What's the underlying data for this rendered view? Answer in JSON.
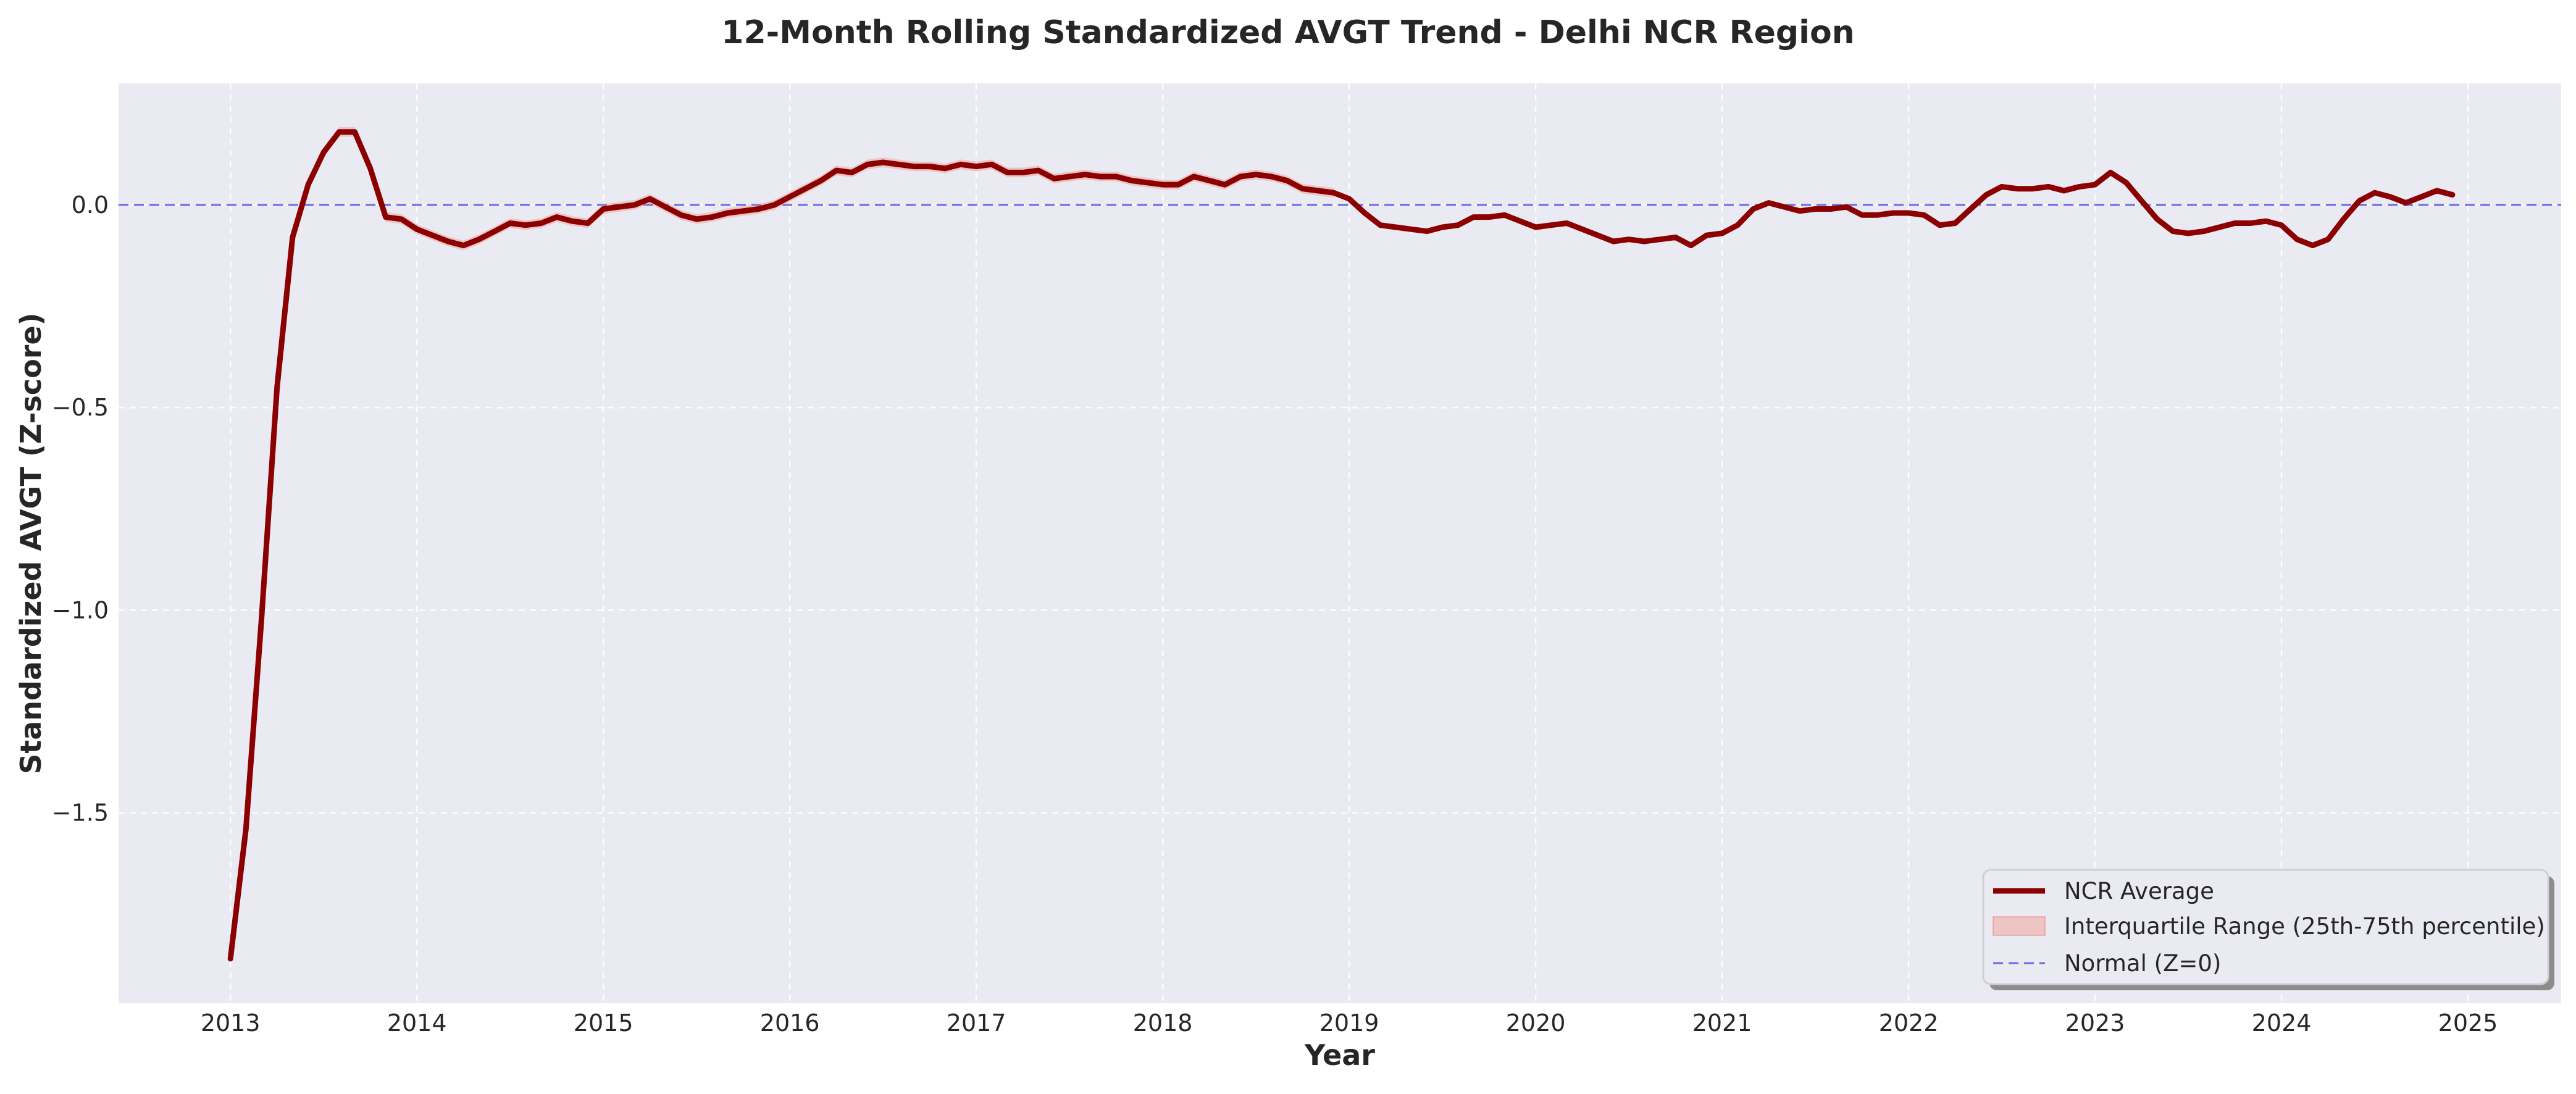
{
  "chart_data": {
    "type": "line",
    "title": "12-Month Rolling Standardized AVGT Trend - Delhi NCR Region",
    "xlabel": "Year",
    "ylabel": "Standardized AVGT (Z-score)",
    "xlim": [
      2012.4,
      2025.5
    ],
    "ylim": [
      -1.97,
      0.3
    ],
    "x_ticks": [
      2013,
      2014,
      2015,
      2016,
      2017,
      2018,
      2019,
      2020,
      2021,
      2022,
      2023,
      2024,
      2025
    ],
    "x_tick_labels": [
      "2013",
      "2014",
      "2015",
      "2016",
      "2017",
      "2018",
      "2019",
      "2020",
      "2021",
      "2022",
      "2023",
      "2024",
      "2025"
    ],
    "y_ticks": [
      0.0,
      -0.5,
      -1.0,
      -1.5
    ],
    "y_tick_labels": [
      "0.0",
      "−0.5",
      "−1.0",
      "−1.5"
    ],
    "grid": true,
    "legend_position": "bottom-right",
    "colors": {
      "line": "#8B0000",
      "band": "#F08070",
      "reference": "#6B6BE8",
      "plot_background": "#EAEAF2",
      "grid": "#FFFFFF"
    },
    "legend": {
      "items": [
        {
          "label": "NCR Average",
          "kind": "line"
        },
        {
          "label": "Interquartile Range (25th-75th percentile)",
          "kind": "band"
        },
        {
          "label": "Normal (Z=0)",
          "kind": "dashed"
        }
      ]
    },
    "reference_line": {
      "name": "Normal (Z=0)",
      "y": 0.0
    },
    "series": [
      {
        "name": "NCR Average",
        "x": [
          2013.0,
          2013.083,
          2013.167,
          2013.25,
          2013.333,
          2013.417,
          2013.5,
          2013.583,
          2013.667,
          2013.75,
          2013.833,
          2013.917,
          2014.0,
          2014.083,
          2014.167,
          2014.25,
          2014.333,
          2014.417,
          2014.5,
          2014.583,
          2014.667,
          2014.75,
          2014.833,
          2014.917,
          2015.0,
          2015.083,
          2015.167,
          2015.25,
          2015.333,
          2015.417,
          2015.5,
          2015.583,
          2015.667,
          2015.75,
          2015.833,
          2015.917,
          2016.0,
          2016.083,
          2016.167,
          2016.25,
          2016.333,
          2016.417,
          2016.5,
          2016.583,
          2016.667,
          2016.75,
          2016.833,
          2016.917,
          2017.0,
          2017.083,
          2017.167,
          2017.25,
          2017.333,
          2017.417,
          2017.5,
          2017.583,
          2017.667,
          2017.75,
          2017.833,
          2017.917,
          2018.0,
          2018.083,
          2018.167,
          2018.25,
          2018.333,
          2018.417,
          2018.5,
          2018.583,
          2018.667,
          2018.75,
          2018.833,
          2018.917,
          2019.0,
          2019.083,
          2019.167,
          2019.25,
          2019.333,
          2019.417,
          2019.5,
          2019.583,
          2019.667,
          2019.75,
          2019.833,
          2019.917,
          2020.0,
          2020.083,
          2020.167,
          2020.25,
          2020.333,
          2020.417,
          2020.5,
          2020.583,
          2020.667,
          2020.75,
          2020.833,
          2020.917,
          2021.0,
          2021.083,
          2021.167,
          2021.25,
          2021.333,
          2021.417,
          2021.5,
          2021.583,
          2021.667,
          2021.75,
          2021.833,
          2021.917,
          2022.0,
          2022.083,
          2022.167,
          2022.25,
          2022.333,
          2022.417,
          2022.5,
          2022.583,
          2022.667,
          2022.75,
          2022.833,
          2022.917,
          2023.0,
          2023.083,
          2023.167,
          2023.25,
          2023.333,
          2023.417,
          2023.5,
          2023.583,
          2023.667,
          2023.75,
          2023.833,
          2023.917,
          2024.0,
          2024.083,
          2024.167,
          2024.25,
          2024.333,
          2024.417,
          2024.5,
          2024.583,
          2024.667,
          2024.75,
          2024.833,
          2024.917
        ],
        "values": [
          -1.86,
          -1.54,
          -1.02,
          -0.45,
          -0.08,
          0.05,
          0.13,
          0.18,
          0.18,
          0.09,
          -0.03,
          -0.035,
          -0.06,
          -0.075,
          -0.09,
          -0.1,
          -0.085,
          -0.065,
          -0.045,
          -0.05,
          -0.045,
          -0.03,
          -0.04,
          -0.045,
          -0.01,
          -0.005,
          0.0,
          0.015,
          -0.005,
          -0.025,
          -0.035,
          -0.03,
          -0.02,
          -0.015,
          -0.01,
          0.0,
          0.02,
          0.04,
          0.06,
          0.085,
          0.08,
          0.1,
          0.105,
          0.1,
          0.095,
          0.095,
          0.09,
          0.1,
          0.095,
          0.1,
          0.08,
          0.08,
          0.085,
          0.065,
          0.07,
          0.075,
          0.07,
          0.07,
          0.06,
          0.055,
          0.05,
          0.05,
          0.07,
          0.06,
          0.05,
          0.07,
          0.075,
          0.07,
          0.06,
          0.04,
          0.035,
          0.03,
          0.015,
          -0.02,
          -0.05,
          -0.055,
          -0.06,
          -0.065,
          -0.055,
          -0.05,
          -0.03,
          -0.03,
          -0.025,
          -0.04,
          -0.055,
          -0.05,
          -0.045,
          -0.06,
          -0.075,
          -0.09,
          -0.085,
          -0.09,
          -0.085,
          -0.08,
          -0.1,
          -0.075,
          -0.07,
          -0.05,
          -0.01,
          0.005,
          -0.005,
          -0.015,
          -0.01,
          -0.01,
          -0.005,
          -0.025,
          -0.025,
          -0.02,
          -0.02,
          -0.025,
          -0.05,
          -0.045,
          -0.01,
          0.025,
          0.045,
          0.04,
          0.04,
          0.045,
          0.035,
          0.045,
          0.05,
          0.08,
          0.055,
          0.01,
          -0.035,
          -0.065,
          -0.07,
          -0.065,
          -0.055,
          -0.045,
          -0.045,
          -0.04,
          -0.05,
          -0.085,
          -0.1,
          -0.085,
          -0.035,
          0.01,
          0.03,
          0.02,
          0.005,
          0.02,
          0.035,
          0.025
        ]
      },
      {
        "name": "Interquartile Range (25th-75th percentile)",
        "x_range": [
          2013.5,
          2018.917
        ],
        "half_width": 0.012
      }
    ]
  }
}
